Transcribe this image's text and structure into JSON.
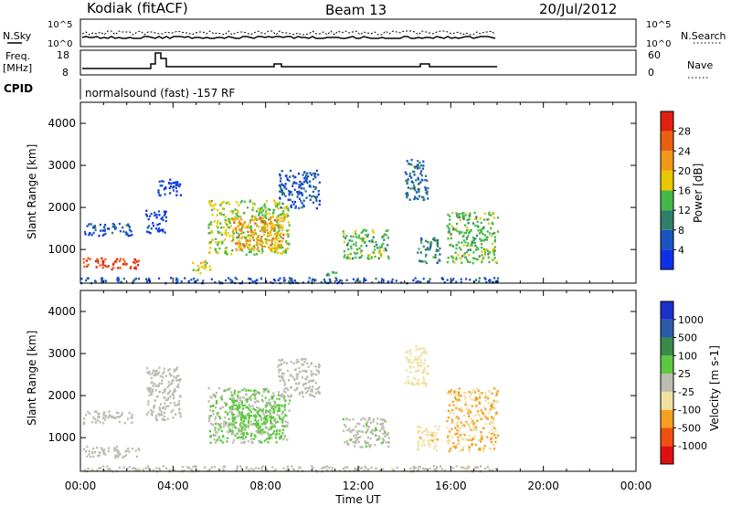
{
  "header": {
    "station": "Kodiak (fitACF)",
    "beam": "Beam 13",
    "date": "20/Jul/2012"
  },
  "panel_nsky": {
    "left_label": "N.Sky",
    "right_label": "N.Search",
    "left_ticks": [
      "10^5",
      "10^0"
    ],
    "right_ticks": [
      "10^5",
      "10^0"
    ]
  },
  "panel_freq": {
    "left_label_line1": "Freq.",
    "left_label_line2": "[MHz]",
    "right_label": "Nave",
    "left_ticks": [
      "18",
      "8"
    ],
    "right_ticks": [
      "60",
      "0"
    ]
  },
  "cpid": {
    "label": "CPID",
    "text": "normalsound (fast) -157 RF"
  },
  "colors": {
    "power": [
      "#1030e8",
      "#1a55c0",
      "#2f7f6a",
      "#46b84a",
      "#e8c800",
      "#f09a18",
      "#e86010",
      "#e02010"
    ],
    "velocity": [
      "#e01010",
      "#ee5010",
      "#f5a020",
      "#f0e0a0",
      "#bcbcb0",
      "#5ec840",
      "#3a8a48",
      "#2a5ca8",
      "#1a30c8"
    ]
  },
  "chart_data": [
    {
      "type": "heatmap",
      "name": "power",
      "xlabel": "",
      "ylabel": "Slant Range [km]",
      "xlim_hours": [
        0,
        24
      ],
      "ylim_km": [
        200,
        4500
      ],
      "x_ticks": [
        "00:00",
        "04:00",
        "08:00",
        "12:00",
        "16:00",
        "20:00",
        "00:00"
      ],
      "y_ticks": [
        1000,
        2000,
        3000,
        4000
      ],
      "data_end_hour": 18,
      "colorbar": {
        "label": "Power [dB]",
        "ticks": [
          "4",
          "8",
          "12",
          "16",
          "20",
          "24",
          "28"
        ],
        "range": [
          0,
          32
        ]
      },
      "regions": [
        {
          "t": [
            0.1,
            2.6
          ],
          "r": [
            550,
            820
          ],
          "value": 28
        },
        {
          "t": [
            0.1,
            2.2
          ],
          "r": [
            1350,
            1650
          ],
          "value": 6
        },
        {
          "t": [
            2.8,
            3.7
          ],
          "r": [
            1400,
            1950
          ],
          "value": 4
        },
        {
          "t": [
            3.2,
            4.3
          ],
          "r": [
            2300,
            2700
          ],
          "value": 4
        },
        {
          "t": [
            4.8,
            5.6
          ],
          "r": [
            450,
            750
          ],
          "value": 18
        },
        {
          "t": [
            5.5,
            9.0
          ],
          "r": [
            900,
            2200
          ],
          "value": 16
        },
        {
          "t": [
            6.5,
            8.8
          ],
          "r": [
            1000,
            1800
          ],
          "value": 22
        },
        {
          "t": [
            8.5,
            10.3
          ],
          "r": [
            2000,
            2900
          ],
          "value": 6
        },
        {
          "t": [
            10.5,
            11.2
          ],
          "r": [
            350,
            500
          ],
          "value": 12
        },
        {
          "t": [
            11.3,
            13.3
          ],
          "r": [
            800,
            1500
          ],
          "value": 14
        },
        {
          "t": [
            14.0,
            15.0
          ],
          "r": [
            2200,
            3200
          ],
          "value": 8
        },
        {
          "t": [
            14.5,
            15.5
          ],
          "r": [
            700,
            1300
          ],
          "value": 10
        },
        {
          "t": [
            15.8,
            18.0
          ],
          "r": [
            700,
            1900
          ],
          "value": 14
        },
        {
          "t": [
            0.0,
            18.0
          ],
          "r": [
            220,
            350
          ],
          "value": 6
        }
      ]
    },
    {
      "type": "heatmap",
      "name": "velocity",
      "xlabel": "Time UT",
      "ylabel": "Slant Range [km]",
      "xlim_hours": [
        0,
        24
      ],
      "ylim_km": [
        200,
        4500
      ],
      "x_ticks": [
        "00:00",
        "04:00",
        "08:00",
        "12:00",
        "16:00",
        "20:00",
        "00:00"
      ],
      "y_ticks": [
        1000,
        2000,
        3000,
        4000
      ],
      "data_end_hour": 18,
      "colorbar": {
        "label": "Velocity [m s-1]",
        "ticks": [
          "-1000",
          "-500",
          "-100",
          "-25",
          "25",
          "100",
          "500",
          "1000"
        ],
        "range": [
          -1500,
          1500
        ]
      },
      "regions": [
        {
          "t": [
            0.1,
            2.6
          ],
          "r": [
            550,
            820
          ],
          "value": 0
        },
        {
          "t": [
            0.1,
            2.2
          ],
          "r": [
            1350,
            1650
          ],
          "value": 0
        },
        {
          "t": [
            2.8,
            4.3
          ],
          "r": [
            1400,
            2700
          ],
          "value": 0
        },
        {
          "t": [
            5.5,
            9.0
          ],
          "r": [
            900,
            2200
          ],
          "value": 150
        },
        {
          "t": [
            6.5,
            8.8
          ],
          "r": [
            1000,
            1800
          ],
          "value": 300
        },
        {
          "t": [
            8.5,
            10.3
          ],
          "r": [
            2000,
            2900
          ],
          "value": 0
        },
        {
          "t": [
            11.3,
            13.3
          ],
          "r": [
            800,
            1500
          ],
          "value": 60
        },
        {
          "t": [
            14.0,
            15.0
          ],
          "r": [
            2200,
            3200
          ],
          "value": -300
        },
        {
          "t": [
            14.5,
            15.5
          ],
          "r": [
            700,
            1300
          ],
          "value": -400
        },
        {
          "t": [
            15.8,
            18.0
          ],
          "r": [
            700,
            2200
          ],
          "value": -500
        },
        {
          "t": [
            0.0,
            18.0
          ],
          "r": [
            220,
            350
          ],
          "value": -60
        }
      ]
    }
  ]
}
